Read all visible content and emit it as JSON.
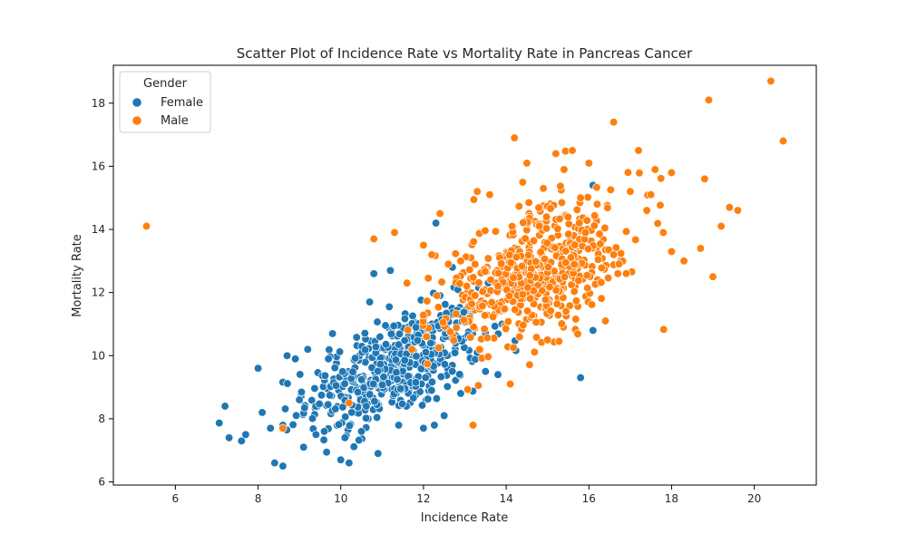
{
  "chart_data": {
    "type": "scatter",
    "title": "Scatter Plot of Incidence Rate vs Mortality Rate in Pancreas Cancer",
    "xlabel": "Incidence Rate",
    "ylabel": "Mortality Rate",
    "xlim": [
      4.5,
      21.5
    ],
    "ylim": [
      5.9,
      19.2
    ],
    "xticks": [
      6,
      8,
      10,
      12,
      14,
      16,
      18,
      20
    ],
    "yticks": [
      6,
      8,
      10,
      12,
      14,
      16,
      18
    ],
    "grid": false,
    "legend": {
      "title": "Gender",
      "placement": "top-left"
    },
    "series": [
      {
        "name": "Female",
        "color": "#1f77b4",
        "center": [
          11.3,
          9.6
        ],
        "count": 480,
        "points": [
          [
            7.2,
            8.4
          ],
          [
            7.3,
            7.4
          ],
          [
            7.6,
            7.3
          ],
          [
            7.7,
            7.5
          ],
          [
            8.0,
            9.6
          ],
          [
            8.1,
            8.2
          ],
          [
            8.3,
            7.7
          ],
          [
            8.4,
            6.6
          ],
          [
            8.6,
            6.5
          ],
          [
            8.6,
            7.8
          ],
          [
            8.7,
            10.0
          ],
          [
            8.9,
            9.9
          ],
          [
            9.0,
            8.6
          ],
          [
            9.1,
            7.1
          ],
          [
            9.2,
            10.2
          ],
          [
            9.4,
            7.5
          ],
          [
            9.6,
            7.6
          ],
          [
            9.7,
            9.9
          ],
          [
            9.8,
            10.7
          ],
          [
            10.0,
            6.7
          ],
          [
            10.1,
            7.4
          ],
          [
            10.2,
            6.6
          ],
          [
            10.5,
            7.6
          ],
          [
            10.7,
            11.7
          ],
          [
            10.8,
            12.6
          ],
          [
            10.9,
            6.9
          ],
          [
            11.2,
            12.7
          ],
          [
            11.4,
            7.8
          ],
          [
            12.0,
            7.7
          ],
          [
            12.3,
            14.2
          ],
          [
            12.5,
            8.1
          ],
          [
            12.9,
            8.8
          ],
          [
            13.3,
            10.1
          ],
          [
            13.5,
            9.5
          ],
          [
            13.8,
            9.4
          ],
          [
            13.9,
            11.0
          ],
          [
            14.1,
            9.1
          ],
          [
            14.2,
            11.9
          ],
          [
            14.6,
            11.8
          ],
          [
            14.8,
            12.9
          ],
          [
            15.8,
            9.3
          ],
          [
            16.1,
            10.8
          ],
          [
            16.1,
            15.4
          ],
          [
            12.4,
            11.9
          ],
          [
            12.7,
            12.8
          ],
          [
            13.1,
            11.2
          ]
        ]
      },
      {
        "name": "Male",
        "color": "#ff7f0e",
        "center": [
          14.7,
          12.6
        ],
        "count": 520,
        "points": [
          [
            5.3,
            14.1
          ],
          [
            8.6,
            7.7
          ],
          [
            10.2,
            8.5
          ],
          [
            10.8,
            13.7
          ],
          [
            11.3,
            13.9
          ],
          [
            11.6,
            12.3
          ],
          [
            12.0,
            13.5
          ],
          [
            12.2,
            13.2
          ],
          [
            12.4,
            14.5
          ],
          [
            12.6,
            12.9
          ],
          [
            12.9,
            13.0
          ],
          [
            13.2,
            7.8
          ],
          [
            13.3,
            15.2
          ],
          [
            13.6,
            15.1
          ],
          [
            13.8,
            12.2
          ],
          [
            14.1,
            9.1
          ],
          [
            14.2,
            16.9
          ],
          [
            14.5,
            16.1
          ],
          [
            14.9,
            15.3
          ],
          [
            15.0,
            10.5
          ],
          [
            15.2,
            16.4
          ],
          [
            15.4,
            15.9
          ],
          [
            15.6,
            16.5
          ],
          [
            15.8,
            15.0
          ],
          [
            16.0,
            16.1
          ],
          [
            16.2,
            14.8
          ],
          [
            16.4,
            11.1
          ],
          [
            16.6,
            17.4
          ],
          [
            16.7,
            12.6
          ],
          [
            17.0,
            15.2
          ],
          [
            17.2,
            16.5
          ],
          [
            17.4,
            14.6
          ],
          [
            17.5,
            15.1
          ],
          [
            17.6,
            15.9
          ],
          [
            17.8,
            13.9
          ],
          [
            18.0,
            15.8
          ],
          [
            18.0,
            13.3
          ],
          [
            18.3,
            13.0
          ],
          [
            18.7,
            13.4
          ],
          [
            18.8,
            15.6
          ],
          [
            18.9,
            18.1
          ],
          [
            19.0,
            12.5
          ],
          [
            19.2,
            14.1
          ],
          [
            19.4,
            14.7
          ],
          [
            19.6,
            14.6
          ],
          [
            20.4,
            18.7
          ],
          [
            20.7,
            16.8
          ],
          [
            16.6,
            13.2
          ]
        ]
      }
    ]
  }
}
